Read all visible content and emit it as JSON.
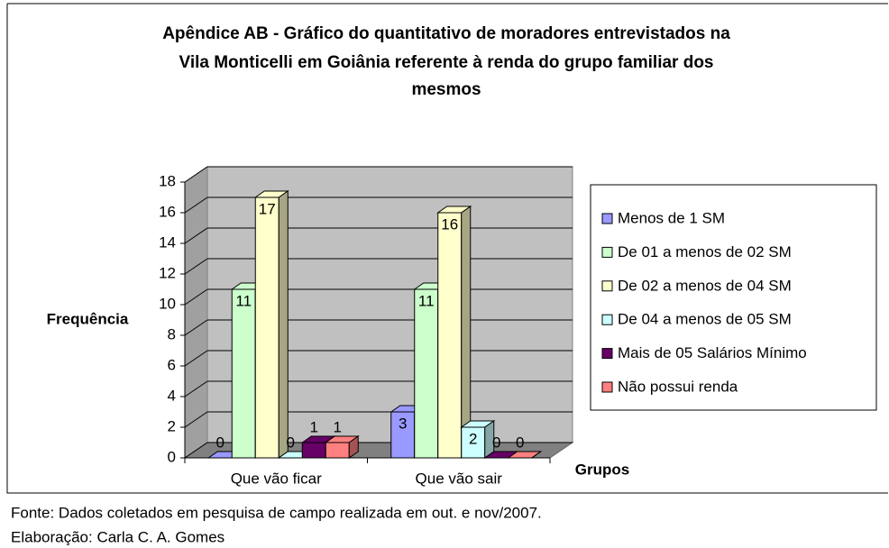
{
  "chart_data": {
    "type": "bar3d",
    "title": [
      "Apêndice AB - Gráfico do quantitativo de moradores entrevistados na",
      "Vila Monticelli em Goiânia referente à renda do grupo familiar dos",
      "mesmos"
    ],
    "y_label": "Frequência",
    "x_label": "Grupos",
    "categories": [
      "Que vão ficar",
      "Que vão sair"
    ],
    "series": [
      {
        "name": "Menos de 1 SM",
        "color": "#9999ff",
        "values": [
          0,
          3
        ]
      },
      {
        "name": "De 01  a menos de 02 SM",
        "color": "#ccffcc",
        "values": [
          11,
          11
        ]
      },
      {
        "name": "De 02 a menos de 04 SM",
        "color": "#ffffcc",
        "values": [
          17,
          16
        ]
      },
      {
        "name": "De 04 a menos de 05 SM",
        "color": "#ccffff",
        "values": [
          0,
          2
        ]
      },
      {
        "name": "Mais de 05 Salários Mínimo",
        "color": "#660066",
        "values": [
          1,
          0
        ]
      },
      {
        "name": "Não possui renda",
        "color": "#ff8080",
        "values": [
          1,
          0
        ]
      }
    ],
    "ylim": [
      0,
      18
    ],
    "yticks": [
      0,
      2,
      4,
      6,
      8,
      10,
      12,
      14,
      16,
      18
    ],
    "grid": true,
    "footer": [
      "Fonte: Dados coletados em pesquisa  de campo realizada em out. e nov/2007.",
      "Elaboração: Carla C. A. Gomes"
    ]
  }
}
